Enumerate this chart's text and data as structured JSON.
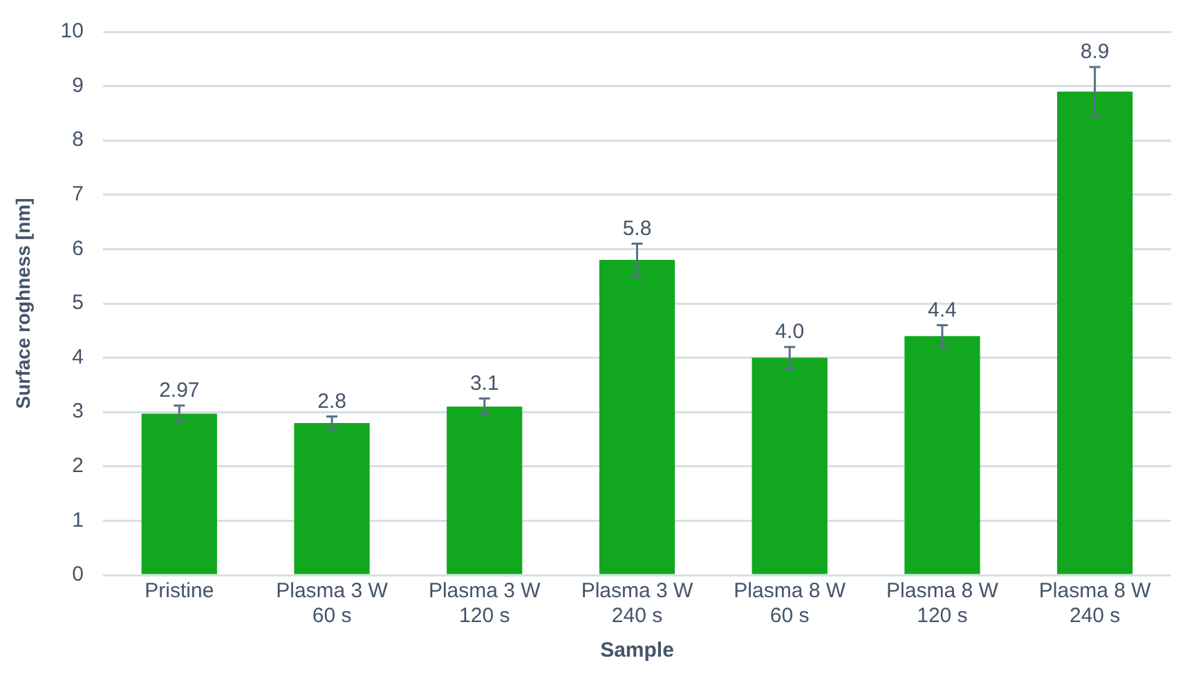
{
  "chart_data": {
    "type": "bar",
    "xlabel": "Sample",
    "ylabel": "Surface roghness [nm]",
    "categories": [
      "Pristine",
      "Plasma 3 W\n60 s",
      "Plasma 3 W\n120 s",
      "Plasma 3 W\n240 s",
      "Plasma 8 W\n60 s",
      "Plasma 8 W\n120 s",
      "Plasma 8 W\n240 s"
    ],
    "values": [
      2.97,
      2.8,
      3.1,
      5.8,
      4.0,
      4.4,
      8.9
    ],
    "value_labels": [
      "2.97",
      "2.8",
      "3.1",
      "5.8",
      "4.0",
      "4.4",
      "8.9"
    ],
    "errors": [
      0.15,
      0.12,
      0.15,
      0.3,
      0.2,
      0.2,
      0.45
    ],
    "color": "#11a81f",
    "ylim": [
      0,
      10
    ],
    "yticks": [
      0,
      1,
      2,
      3,
      4,
      5,
      6,
      7,
      8,
      9,
      10
    ],
    "grid": "y",
    "legend": false
  }
}
